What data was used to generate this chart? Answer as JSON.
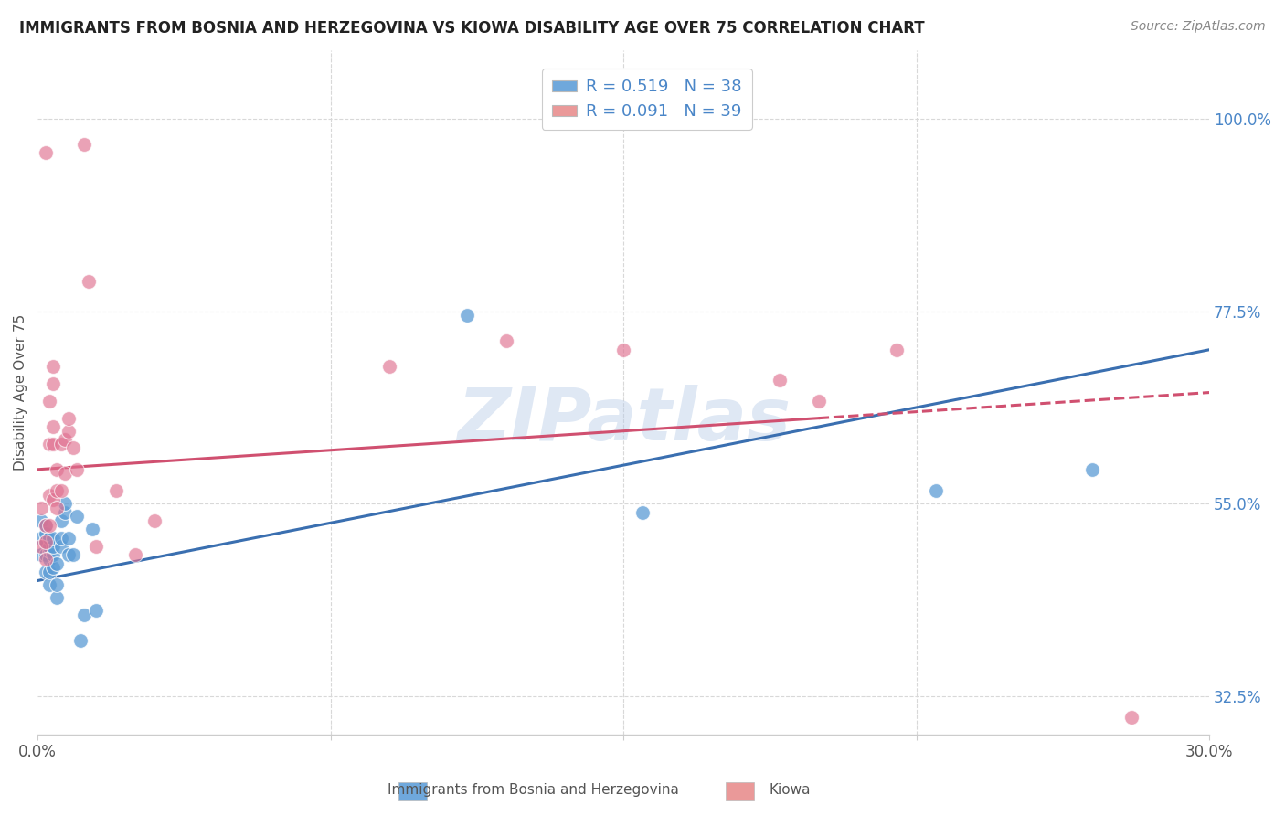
{
  "title": "IMMIGRANTS FROM BOSNIA AND HERZEGOVINA VS KIOWA DISABILITY AGE OVER 75 CORRELATION CHART",
  "source": "Source: ZipAtlas.com",
  "xlabel": "",
  "ylabel": "Disability Age Over 75",
  "xlim": [
    0.0,
    0.3
  ],
  "ylim": [
    0.28,
    1.08
  ],
  "xtick_labels": [
    "0.0%",
    "30.0%"
  ],
  "ytick_labels_right": [
    "100.0%",
    "77.5%",
    "55.0%",
    "32.5%"
  ],
  "ytick_positions_right": [
    1.0,
    0.775,
    0.55,
    0.325
  ],
  "legend_label1": "R = 0.519   N = 38",
  "legend_label2": "R = 0.091   N = 39",
  "legend_color1": "#6fa8dc",
  "legend_color2": "#ea9999",
  "watermark": "ZIPatlas",
  "blue_color": "#5b9bd5",
  "pink_color": "#e07090",
  "blue_line_color": "#3a6fb0",
  "pink_line_color": "#d05070",
  "grid_color": "#d8d8d8",
  "blue_dots_x": [
    0.001,
    0.001,
    0.001,
    0.002,
    0.002,
    0.002,
    0.002,
    0.002,
    0.003,
    0.003,
    0.003,
    0.003,
    0.003,
    0.003,
    0.004,
    0.004,
    0.004,
    0.004,
    0.005,
    0.005,
    0.005,
    0.006,
    0.006,
    0.006,
    0.007,
    0.007,
    0.008,
    0.008,
    0.009,
    0.01,
    0.011,
    0.012,
    0.014,
    0.015,
    0.11,
    0.155,
    0.23,
    0.27
  ],
  "blue_dots_y": [
    0.49,
    0.51,
    0.53,
    0.47,
    0.49,
    0.505,
    0.515,
    0.525,
    0.455,
    0.47,
    0.485,
    0.495,
    0.5,
    0.51,
    0.475,
    0.49,
    0.5,
    0.51,
    0.44,
    0.455,
    0.48,
    0.5,
    0.51,
    0.53,
    0.54,
    0.55,
    0.49,
    0.51,
    0.49,
    0.535,
    0.39,
    0.42,
    0.52,
    0.425,
    0.77,
    0.54,
    0.565,
    0.59
  ],
  "pink_dots_x": [
    0.001,
    0.001,
    0.002,
    0.002,
    0.002,
    0.003,
    0.003,
    0.003,
    0.003,
    0.004,
    0.004,
    0.004,
    0.004,
    0.004,
    0.005,
    0.005,
    0.005,
    0.006,
    0.006,
    0.007,
    0.007,
    0.008,
    0.008,
    0.009,
    0.01,
    0.012,
    0.013,
    0.015,
    0.02,
    0.025,
    0.03,
    0.09,
    0.12,
    0.15,
    0.19,
    0.2,
    0.22,
    0.28,
    0.002
  ],
  "pink_dots_y": [
    0.5,
    0.545,
    0.485,
    0.505,
    0.525,
    0.525,
    0.56,
    0.62,
    0.67,
    0.555,
    0.62,
    0.64,
    0.69,
    0.71,
    0.545,
    0.565,
    0.59,
    0.565,
    0.62,
    0.585,
    0.625,
    0.635,
    0.65,
    0.615,
    0.59,
    0.97,
    0.81,
    0.5,
    0.565,
    0.49,
    0.53,
    0.71,
    0.74,
    0.73,
    0.695,
    0.67,
    0.73,
    0.3,
    0.96
  ],
  "blue_line_x0": 0.0,
  "blue_line_y0": 0.46,
  "blue_line_x1": 0.3,
  "blue_line_y1": 0.73,
  "pink_line_x0": 0.0,
  "pink_line_y0": 0.59,
  "pink_line_x1_solid": 0.2,
  "pink_line_y1_solid": 0.65,
  "pink_line_x1_dash": 0.3,
  "pink_line_y1_dash": 0.68
}
